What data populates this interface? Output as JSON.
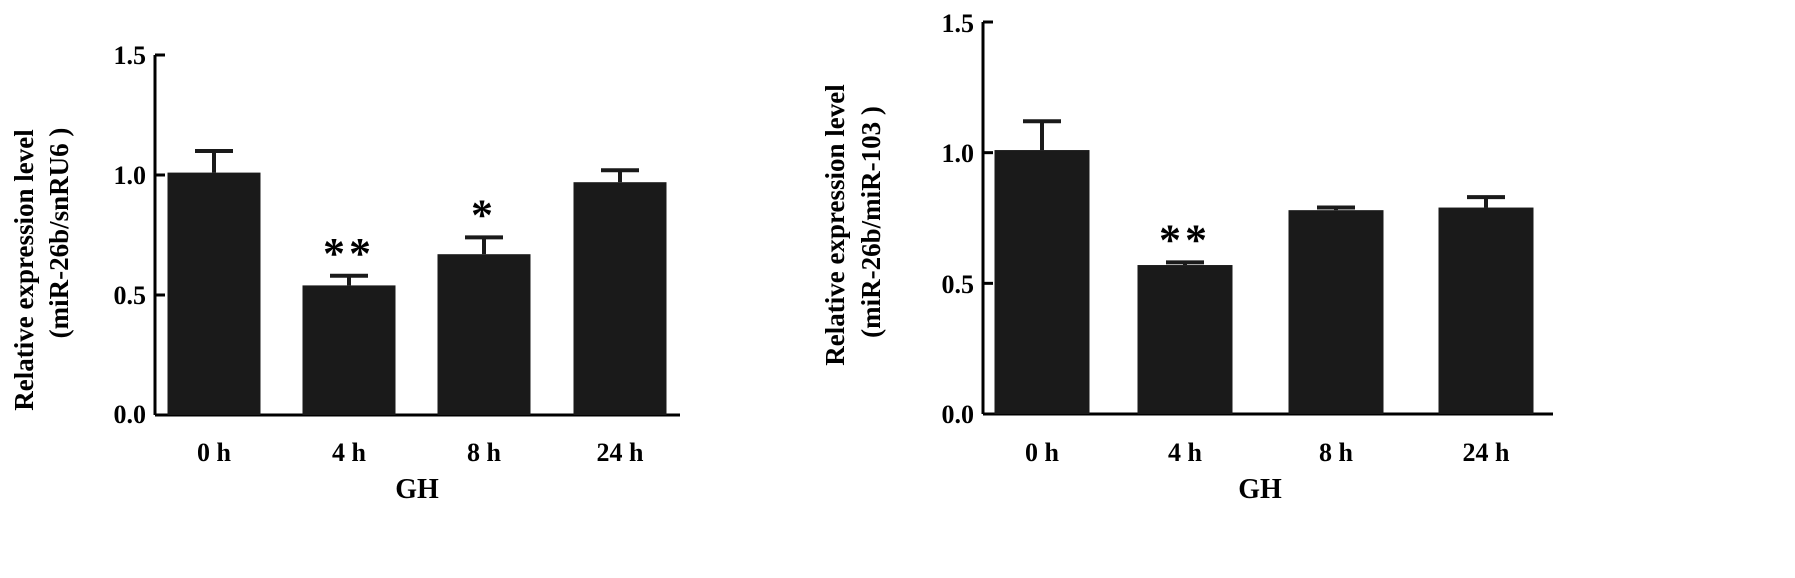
{
  "chart_data": [
    {
      "type": "bar",
      "categories": [
        "0 h",
        "4 h",
        "8 h",
        "24 h"
      ],
      "values": [
        1.01,
        0.54,
        0.67,
        0.97
      ],
      "errors": [
        0.09,
        0.04,
        0.07,
        0.05
      ],
      "significance": [
        "",
        "**",
        "*",
        ""
      ],
      "xlabel": "GH",
      "ylabel_line1": "Relative expression level",
      "ylabel_line2": "(miR-26b/snRU6 )",
      "ylim": [
        0,
        1.5
      ],
      "yticks": [
        "0.0",
        "0.5",
        "1.0",
        "1.5"
      ],
      "bar_color": "#1a1a1a",
      "grid": false
    },
    {
      "type": "bar",
      "categories": [
        "0 h",
        "4 h",
        "8 h",
        "24 h"
      ],
      "values": [
        1.01,
        0.57,
        0.78,
        0.79
      ],
      "errors": [
        0.11,
        0.01,
        0.01,
        0.04
      ],
      "significance": [
        "",
        "**",
        "",
        ""
      ],
      "xlabel": "GH",
      "ylabel_line1": "Relative expression level",
      "ylabel_line2": "(miR-26b/miR-103 )",
      "ylim": [
        0,
        1.5
      ],
      "yticks": [
        "0.0",
        "0.5",
        "1.0",
        "1.5"
      ],
      "bar_color": "#1a1a1a",
      "grid": false
    }
  ]
}
